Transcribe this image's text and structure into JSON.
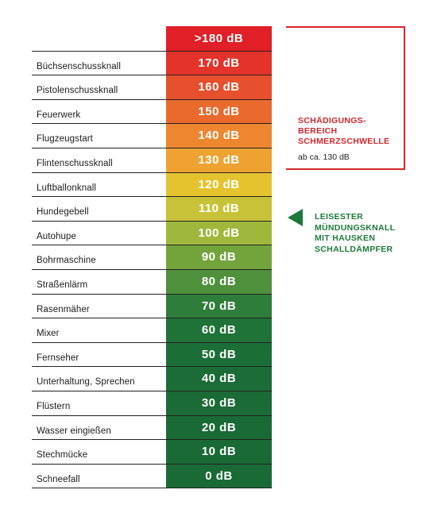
{
  "chart_data": {
    "type": "table",
    "rows": [
      {
        "source": "",
        "db_label": ">180 dB",
        "db": 180,
        "color": "#e01f26"
      },
      {
        "source": "Büchsenschussknall",
        "db_label": "170 dB",
        "db": 170,
        "color": "#e3332a"
      },
      {
        "source": "Pistolenschussknall",
        "db_label": "160 dB",
        "db": 160,
        "color": "#e7502c"
      },
      {
        "source": "Feuerwerk",
        "db_label": "150 dB",
        "db": 150,
        "color": "#ea6a2e"
      },
      {
        "source": "Flugzeugstart",
        "db_label": "140 dB",
        "db": 140,
        "color": "#ee8630"
      },
      {
        "source": "Flintenschussknall",
        "db_label": "130 dB",
        "db": 130,
        "color": "#eea232"
      },
      {
        "source": "Luftballonknall",
        "db_label": "120 dB",
        "db": 120,
        "color": "#e5c32f"
      },
      {
        "source": "Hundegebell",
        "db_label": "110 dB",
        "db": 110,
        "color": "#c8c238"
      },
      {
        "source": "Autohupe",
        "db_label": "100 dB",
        "db": 100,
        "color": "#9fb83c"
      },
      {
        "source": "Bohrmaschine",
        "db_label": "90 dB",
        "db": 90,
        "color": "#73a43c"
      },
      {
        "source": "Straßenlärm",
        "db_label": "80 dB",
        "db": 80,
        "color": "#4f903c"
      },
      {
        "source": "Rasenmäher",
        "db_label": "70 dB",
        "db": 70,
        "color": "#2f7d3a"
      },
      {
        "source": "Mixer",
        "db_label": "60 dB",
        "db": 60,
        "color": "#1f7238"
      },
      {
        "source": "Fernseher",
        "db_label": "50 dB",
        "db": 50,
        "color": "#1c6e37"
      },
      {
        "source": "Unterhaltung, Sprechen",
        "db_label": "40 dB",
        "db": 40,
        "color": "#1b6c37"
      },
      {
        "source": "Flüstern",
        "db_label": "30 dB",
        "db": 30,
        "color": "#1b6b36"
      },
      {
        "source": "Wasser eingießen",
        "db_label": "20 dB",
        "db": 20,
        "color": "#1a6a36"
      },
      {
        "source": "Stechmücke",
        "db_label": "10 dB",
        "db": 10,
        "color": "#1a6a36"
      },
      {
        "source": "Schneefall",
        "db_label": "0 dB",
        "db": 0,
        "color": "#1a6a36"
      }
    ]
  },
  "annotations": {
    "damage_zone": {
      "title": "SCHÄDIGUNGS-\nBEREICH\nSCHMERZSCHWELLE",
      "subtitle": "ab ca. 130 dB",
      "color": "#d8252a"
    },
    "silencer": {
      "text": "LEISESTER\nMÜNDUNGSKNALL\nMIT HAUSKEN\nSCHALLDÄMPFER",
      "color": "#1d7a3a"
    }
  }
}
